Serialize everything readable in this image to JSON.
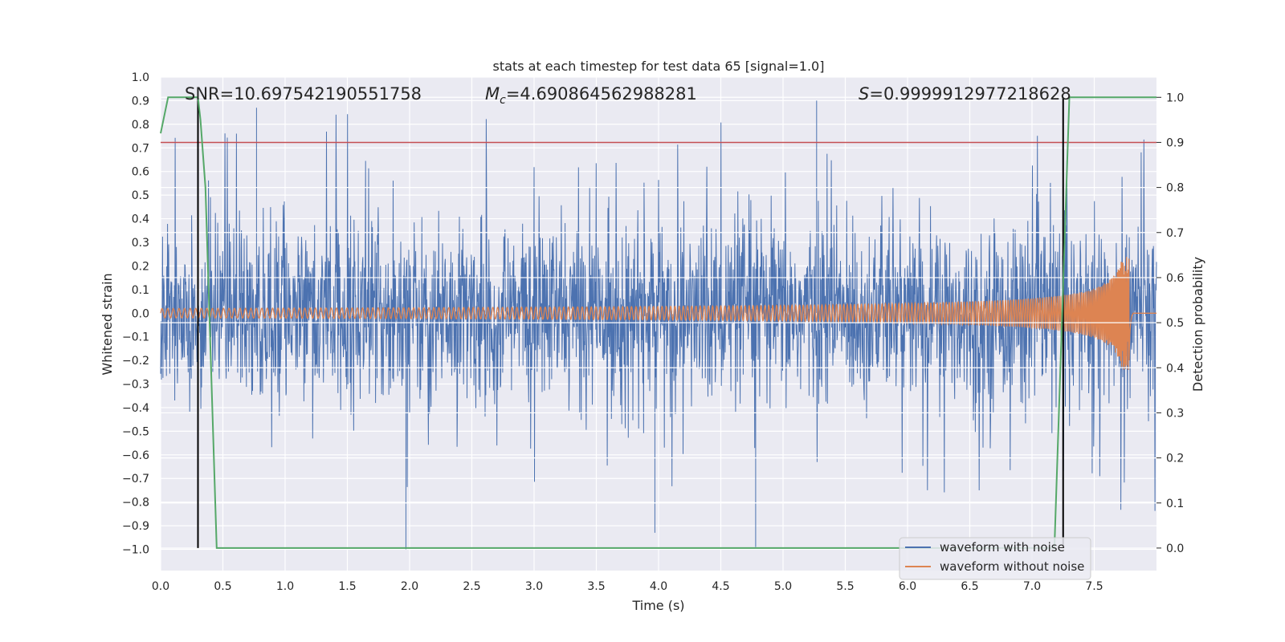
{
  "chart_data": {
    "type": "line",
    "title": "stats at each timestep for test data 65 [signal=1.0]",
    "xlabel": "Time (s)",
    "ylabel_left": "Whitened strain",
    "ylabel_right": "Detection probability",
    "xlim": [
      0.0,
      8.0
    ],
    "ylim_left": [
      -1.09,
      1.0
    ],
    "ylim_right": [
      -0.05,
      1.045
    ],
    "x_ticks": [
      "0.0",
      "0.5",
      "1.0",
      "1.5",
      "2.0",
      "2.5",
      "3.0",
      "3.5",
      "4.0",
      "4.5",
      "5.0",
      "5.5",
      "6.0",
      "6.5",
      "7.0",
      "7.5"
    ],
    "y_left_ticks": [
      "1.0",
      "0.9",
      "0.8",
      "0.7",
      "0.6",
      "0.5",
      "0.4",
      "0.3",
      "0.2",
      "0.1",
      "0.0",
      "−0.1",
      "−0.2",
      "−0.3",
      "−0.4",
      "−0.5",
      "−0.6",
      "−0.7",
      "−0.8",
      "−0.9",
      "−1.0"
    ],
    "y_right_ticks": [
      "0.0",
      "0.1",
      "0.2",
      "0.3",
      "0.4",
      "0.5",
      "0.6",
      "0.7",
      "0.8",
      "0.9",
      "1.0"
    ],
    "grid": true,
    "annotations": {
      "snr": "SNR=10.697542190551758",
      "mc_symbol": "M",
      "mc_sub": "c",
      "mc_value": "=4.690864562988281",
      "s_symbol": "S",
      "s_value": "=0.9999912977218628"
    },
    "series": [
      {
        "name": "waveform with noise",
        "color": "#4c72b0",
        "axis": "left",
        "typical_range": [
          -0.47,
          0.5
        ],
        "max_extreme": 0.9,
        "min_extreme": -1.0
      },
      {
        "name": "waveform without noise",
        "color": "#dd8452",
        "axis": "left",
        "chirp_start_time": 0.0,
        "merger_time": 7.78,
        "start_amplitude": 0.02,
        "peak_amplitude": [
          0.24,
          -0.2
        ]
      },
      {
        "name": "detection probability",
        "color": "#55a868",
        "axis": "right",
        "x": [
          0.0,
          0.06,
          0.1,
          0.18,
          0.3,
          0.32,
          0.36,
          0.45,
          4.4,
          7.18,
          7.3,
          8.0
        ],
        "y": [
          0.92,
          1.0,
          1.0,
          1.0,
          1.0,
          0.95,
          0.8,
          0.0,
          0.0,
          0.0,
          1.0,
          1.0
        ]
      }
    ],
    "threshold": {
      "axis": "right",
      "value": 0.9,
      "color": "#c44e52"
    },
    "vertical_markers": {
      "x": [
        0.3,
        7.25
      ],
      "color": "#000000"
    },
    "legend": {
      "position": "lower-right",
      "entries": [
        {
          "label": "waveform with noise",
          "color": "#4c72b0"
        },
        {
          "label": "waveform without noise",
          "color": "#dd8452"
        }
      ]
    }
  }
}
